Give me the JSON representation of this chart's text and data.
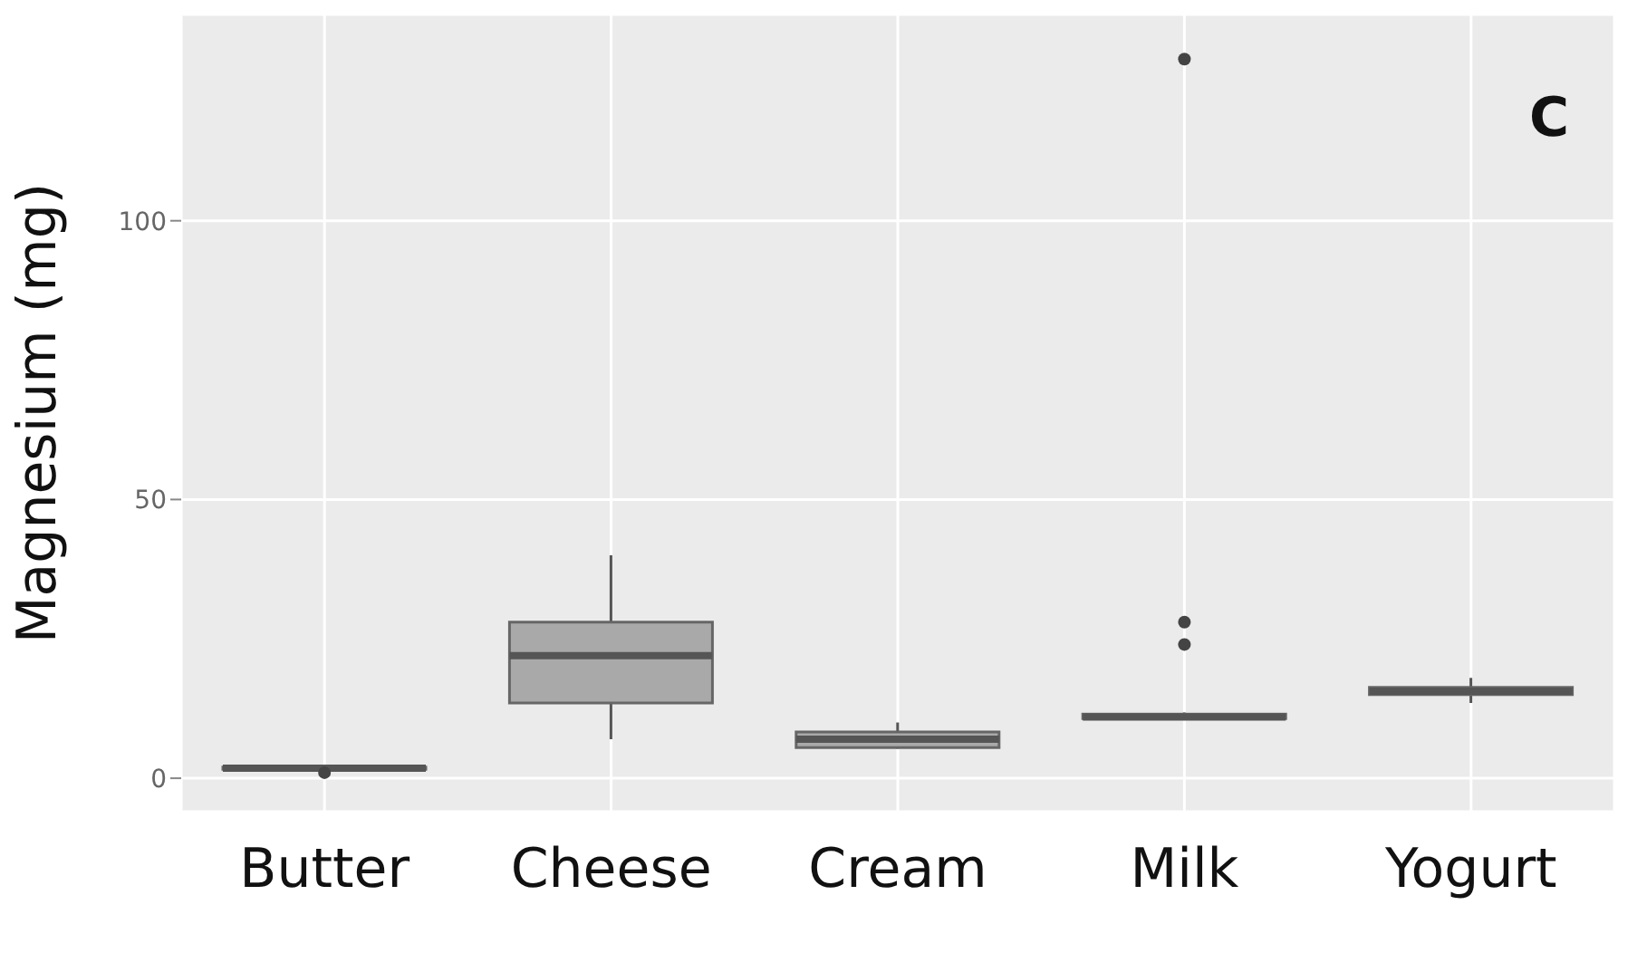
{
  "chart_data": {
    "type": "box",
    "ylabel": "Magnesium (mg)",
    "annotations": [
      "C"
    ],
    "categories": [
      "Butter",
      "Cheese",
      "Cream",
      "Milk",
      "Yogurt"
    ],
    "color": "#a9a9a9",
    "boxes": [
      {
        "low": 1.5,
        "q1": 1.6,
        "median": 1.8,
        "q3": 2,
        "high": 2.1,
        "outliers": [
          1
        ]
      },
      {
        "low": 7,
        "q1": 13.5,
        "median": 22,
        "q3": 28,
        "high": 40
      },
      {
        "low": 5.3,
        "q1": 5.5,
        "median": 7,
        "q3": 8.3,
        "high": 10
      },
      {
        "low": 10.5,
        "q1": 10.7,
        "median": 11,
        "q3": 11.5,
        "high": 11.8,
        "outliers": [
          24,
          28,
          129
        ]
      },
      {
        "low": 13.5,
        "q1": 15,
        "median": 15.6,
        "q3": 16.3,
        "high": 18
      }
    ],
    "ylim": [
      -6,
      137
    ],
    "yticks": [
      0,
      50,
      100
    ],
    "grid": true
  }
}
